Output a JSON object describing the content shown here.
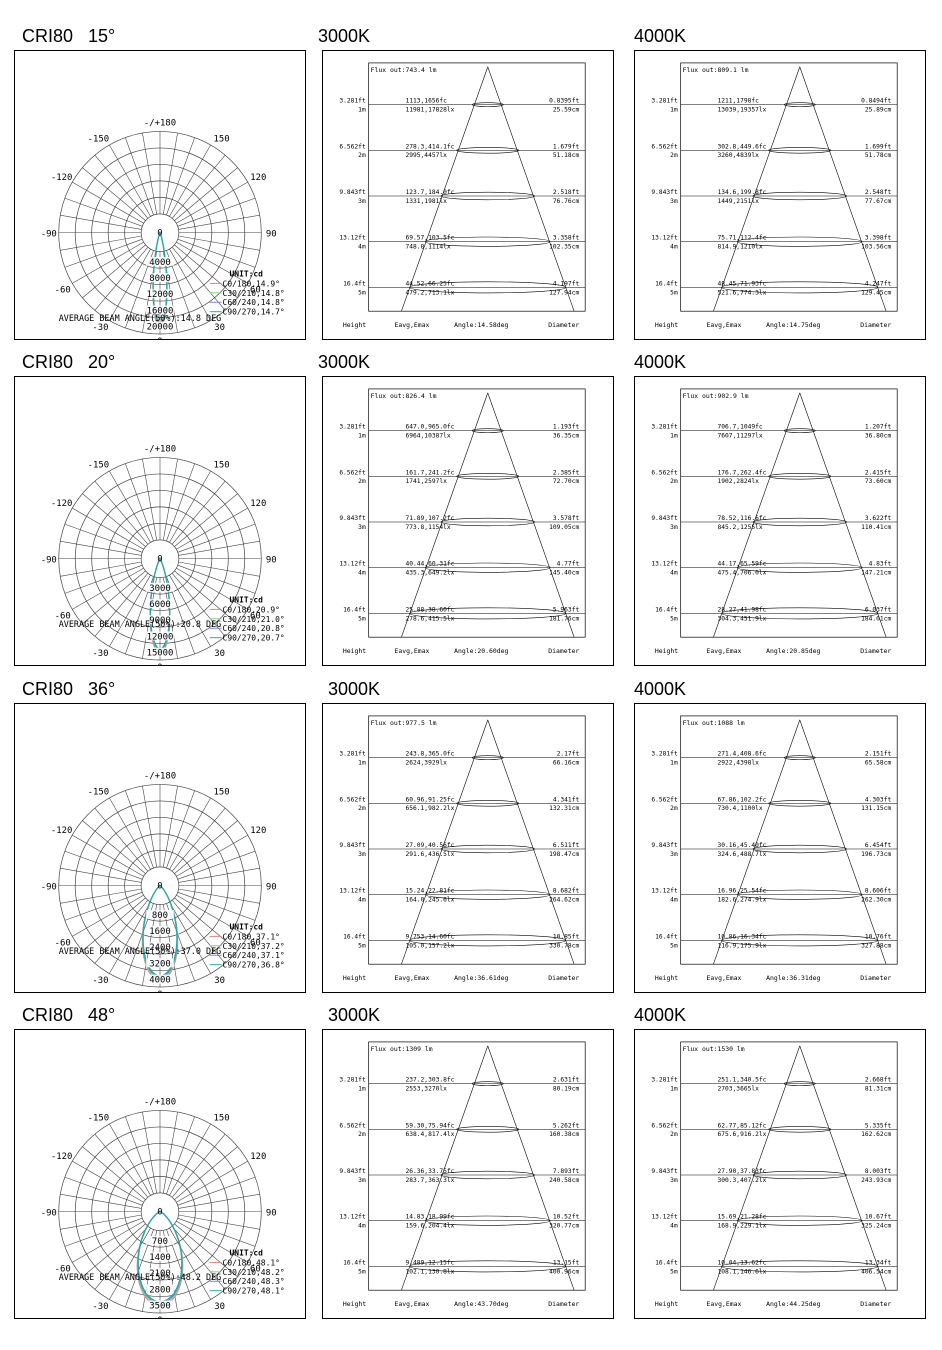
{
  "rows": [
    {
      "header": "CRI80   15°",
      "polar": {
        "ring_labels": [
          "0",
          "4000",
          "8000",
          "12000",
          "16000",
          "20000"
        ],
        "angle_labels": {
          "top": "-/+180",
          "l150": "-150",
          "r150": "150",
          "l120": "-120",
          "r120": "120",
          "l90": "-90",
          "r90": "90",
          "l60": "-60",
          "r60": "60",
          "l30": "-30",
          "r30": "30",
          "bottom": "0"
        },
        "unit": "UNIT:cd",
        "legend": [
          "C0/180,14.9°",
          "C30/210,14.8°",
          "C60/240,14.8°",
          "C90/270,14.7°"
        ],
        "beam": "AVERAGE BEAM ANGLE(50%):14.8 DEG",
        "beam_deg": 14.8
      },
      "cones": [
        {
          "cct": "3000K",
          "flux": "Flux out:743.4 lm",
          "angle_deg": 14.58,
          "footer": {
            "height": "Height",
            "e": "Eavg,Emax",
            "angle": "Angle:14.58deg",
            "diameter": "Diameter"
          },
          "rows": [
            {
              "ft": "3.281ft",
              "m": "1m",
              "fc": "1113,1656fc",
              "lx": "11981,17828lx",
              "dft": "0.8395ft",
              "dcm": "25.59cm"
            },
            {
              "ft": "6.562ft",
              "m": "2m",
              "fc": "278.3,414.1fc",
              "lx": "2995,4457lx",
              "dft": "1.679ft",
              "dcm": "51.18cm"
            },
            {
              "ft": "9.843ft",
              "m": "3m",
              "fc": "123.7,184.0fc",
              "lx": "1331,1981lx",
              "dft": "2.518ft",
              "dcm": "76.76cm"
            },
            {
              "ft": "13.12ft",
              "m": "4m",
              "fc": "69.57,103.5fc",
              "lx": "748.8,1114lx",
              "dft": "3.358ft",
              "dcm": "102.35cm"
            },
            {
              "ft": "16.4ft",
              "m": "5m",
              "fc": "44.52,66.25fc",
              "lx": "479.2,713.1lx",
              "dft": "4.197ft",
              "dcm": "127.94cm"
            }
          ]
        },
        {
          "cct": "4000K",
          "flux": "Flux out:809.1 lm",
          "angle_deg": 14.75,
          "footer": {
            "height": "Height",
            "e": "Eavg,Emax",
            "angle": "Angle:14.75deg",
            "diameter": "Diameter"
          },
          "rows": [
            {
              "ft": "3.281ft",
              "m": "1m",
              "fc": "1211,1798fc",
              "lx": "13039,19357lx",
              "dft": "0.8494ft",
              "dcm": "25.89cm"
            },
            {
              "ft": "6.562ft",
              "m": "2m",
              "fc": "302.8,449.6fc",
              "lx": "3260,4839lx",
              "dft": "1.699ft",
              "dcm": "51.78cm"
            },
            {
              "ft": "9.843ft",
              "m": "3m",
              "fc": "134.6,199.8fc",
              "lx": "1449,2151lx",
              "dft": "2.548ft",
              "dcm": "77.67cm"
            },
            {
              "ft": "13.12ft",
              "m": "4m",
              "fc": "75.71,112.4fc",
              "lx": "814.9,1210lx",
              "dft": "3.398ft",
              "dcm": "103.56cm"
            },
            {
              "ft": "16.4ft",
              "m": "5m",
              "fc": "48.45,71.93fc",
              "lx": "521.6,774.3lx",
              "dft": "4.247ft",
              "dcm": "129.45cm"
            }
          ]
        }
      ]
    },
    {
      "header": "CRI80   20°",
      "polar": {
        "ring_labels": [
          "0",
          "3000",
          "6000",
          "9000",
          "12000",
          "15000"
        ],
        "angle_labels": {
          "top": "-/+180",
          "l150": "-150",
          "r150": "150",
          "l120": "-120",
          "r120": "120",
          "l90": "-90",
          "r90": "90",
          "l60": "-60",
          "r60": "60",
          "l30": "-30",
          "r30": "30",
          "bottom": "0"
        },
        "unit": "UNIT:cd",
        "legend": [
          "C0/180,20.9°",
          "C30/210,21.0°",
          "C60/240,20.8°",
          "C90/270,20.7°"
        ],
        "beam": "AVERAGE BEAM ANGLE(50%):20.8 DEG",
        "beam_deg": 20.8
      },
      "cones": [
        {
          "cct": "3000K",
          "flux": "Flux out:826.4 lm",
          "angle_deg": 20.6,
          "footer": {
            "height": "Height",
            "e": "Eavg,Emax",
            "angle": "Angle:20.60deg",
            "diameter": "Diameter"
          },
          "rows": [
            {
              "ft": "3.281ft",
              "m": "1m",
              "fc": "647.0,965.0fc",
              "lx": "6964,10387lx",
              "dft": "1.193ft",
              "dcm": "36.35cm"
            },
            {
              "ft": "6.562ft",
              "m": "2m",
              "fc": "161.7,241.2fc",
              "lx": "1741,2597lx",
              "dft": "2.385ft",
              "dcm": "72.70cm"
            },
            {
              "ft": "9.843ft",
              "m": "3m",
              "fc": "71.89,107.2fc",
              "lx": "773.8,1154lx",
              "dft": "3.578ft",
              "dcm": "109.05cm"
            },
            {
              "ft": "13.12ft",
              "m": "4m",
              "fc": "40.44,60.31fc",
              "lx": "435.3,649.2lx",
              "dft": "4.77ft",
              "dcm": "145.40cm"
            },
            {
              "ft": "16.4ft",
              "m": "5m",
              "fc": "25.88,38.60fc",
              "lx": "278.6,415.5lx",
              "dft": "5.963ft",
              "dcm": "181.76cm"
            }
          ]
        },
        {
          "cct": "4000K",
          "flux": "Flux out:902.9 lm",
          "angle_deg": 20.85,
          "footer": {
            "height": "Height",
            "e": "Eavg,Emax",
            "angle": "Angle:20.85deg",
            "diameter": "Diameter"
          },
          "rows": [
            {
              "ft": "3.281ft",
              "m": "1m",
              "fc": "706.7,1049fc",
              "lx": "7607,11297lx",
              "dft": "1.207ft",
              "dcm": "36.80cm"
            },
            {
              "ft": "6.562ft",
              "m": "2m",
              "fc": "176.7,262.4fc",
              "lx": "1902,2824lx",
              "dft": "2.415ft",
              "dcm": "73.60cm"
            },
            {
              "ft": "9.843ft",
              "m": "3m",
              "fc": "78.52,116.6fc",
              "lx": "845.2,1255lx",
              "dft": "3.622ft",
              "dcm": "110.41cm"
            },
            {
              "ft": "13.12ft",
              "m": "4m",
              "fc": "44.17,65.59fc",
              "lx": "475.4,706.0lx",
              "dft": "4.83ft",
              "dcm": "147.21cm"
            },
            {
              "ft": "16.4ft",
              "m": "5m",
              "fc": "28.27,41.98fc",
              "lx": "304.3,451.9lx",
              "dft": "6.037ft",
              "dcm": "184.01cm"
            }
          ]
        }
      ]
    },
    {
      "header": "CRI80   36°",
      "polar": {
        "ring_labels": [
          "0",
          "800",
          "1600",
          "2400",
          "3200",
          "4000"
        ],
        "angle_labels": {
          "top": "-/+180",
          "l150": "-150",
          "r150": "150",
          "l120": "-120",
          "r120": "120",
          "l90": "-90",
          "r90": "90",
          "l60": "-60",
          "r60": "60",
          "l30": "-30",
          "r30": "30",
          "bottom": "0"
        },
        "unit": "UNIT:cd",
        "legend": [
          "C0/180,37.1°",
          "C30/210,37.2°",
          "C60/240,37.1°",
          "C90/270,36.8°"
        ],
        "beam": "AVERAGE BEAM ANGLE(50%):37.0 DEG",
        "beam_deg": 37.0
      },
      "cones": [
        {
          "cct": "3000K",
          "flux": "Flux out:977.5 lm",
          "angle_deg": 36.61,
          "footer": {
            "height": "Height",
            "e": "Eavg,Emax",
            "angle": "Angle:36.61deg",
            "diameter": "Diameter"
          },
          "rows": [
            {
              "ft": "3.281ft",
              "m": "1m",
              "fc": "243.8,365.0fc",
              "lx": "2624,3929lx",
              "dft": "2.17ft",
              "dcm": "66.16cm"
            },
            {
              "ft": "6.562ft",
              "m": "2m",
              "fc": "60.96,91.25fc",
              "lx": "656.1,982.2lx",
              "dft": "4.341ft",
              "dcm": "132.31cm"
            },
            {
              "ft": "9.843ft",
              "m": "3m",
              "fc": "27.09,40.56fc",
              "lx": "291.6,436.5lx",
              "dft": "6.511ft",
              "dcm": "198.47cm"
            },
            {
              "ft": "13.12ft",
              "m": "4m",
              "fc": "15.24,22.81fc",
              "lx": "164.0,245.6lx",
              "dft": "8.682ft",
              "dcm": "264.62cm"
            },
            {
              "ft": "16.4ft",
              "m": "5m",
              "fc": "9.753,14.60fc",
              "lx": "105.0,157.2lx",
              "dft": "10.85ft",
              "dcm": "330.78cm"
            }
          ]
        },
        {
          "cct": "4000K",
          "flux": "Flux out:1088 lm",
          "angle_deg": 36.31,
          "footer": {
            "height": "Height",
            "e": "Eavg,Emax",
            "angle": "Angle:36.31deg",
            "diameter": "Diameter"
          },
          "rows": [
            {
              "ft": "3.281ft",
              "m": "1m",
              "fc": "271.4,408.6fc",
              "lx": "2922,4398lx",
              "dft": "2.151ft",
              "dcm": "65.58cm"
            },
            {
              "ft": "6.562ft",
              "m": "2m",
              "fc": "67.86,102.2fc",
              "lx": "730.4,1100lx",
              "dft": "4.303ft",
              "dcm": "131.15cm"
            },
            {
              "ft": "9.843ft",
              "m": "3m",
              "fc": "30.16,45.40fc",
              "lx": "324.6,488.7lx",
              "dft": "6.454ft",
              "dcm": "196.73cm"
            },
            {
              "ft": "13.12ft",
              "m": "4m",
              "fc": "16.96,25.54fc",
              "lx": "182.6,274.9lx",
              "dft": "8.606ft",
              "dcm": "262.30cm"
            },
            {
              "ft": "16.4ft",
              "m": "5m",
              "fc": "10.86,16.34fc",
              "lx": "116.9,175.9lx",
              "dft": "10.76ft",
              "dcm": "327.88cm"
            }
          ]
        }
      ]
    },
    {
      "header": "CRI80   48°",
      "polar": {
        "ring_labels": [
          "0",
          "700",
          "1400",
          "2100",
          "2800",
          "3500"
        ],
        "angle_labels": {
          "top": "-/+180",
          "l150": "-150",
          "r150": "150",
          "l120": "-120",
          "r120": "120",
          "l90": "-90",
          "r90": "90",
          "l60": "-60",
          "r60": "60",
          "l30": "-30",
          "r30": "30",
          "bottom": "0"
        },
        "unit": "UNIT:cd",
        "legend": [
          "C0/180,48.1°",
          "C30/210,48.2°",
          "C60/240,48.3°",
          "C90/270,48.1°"
        ],
        "beam": "AVERAGE BEAM ANGLE(50%):48.2 DEG",
        "beam_deg": 48.2
      },
      "cones": [
        {
          "cct": "3000K",
          "flux": "Flux out:1309 lm",
          "angle_deg": 43.7,
          "footer": {
            "height": "Height",
            "e": "Eavg,Emax",
            "angle": "Angle:43.70deg",
            "diameter": "Diameter"
          },
          "rows": [
            {
              "ft": "3.281ft",
              "m": "1m",
              "fc": "237.2,303.8fc",
              "lx": "2553,3270lx",
              "dft": "2.631ft",
              "dcm": "80.19cm"
            },
            {
              "ft": "6.562ft",
              "m": "2m",
              "fc": "59.30,75.94fc",
              "lx": "638.4,817.4lx",
              "dft": "5.262ft",
              "dcm": "160.38cm"
            },
            {
              "ft": "9.843ft",
              "m": "3m",
              "fc": "26.36,33.75fc",
              "lx": "283.7,363.3lx",
              "dft": "7.893ft",
              "dcm": "240.58cm"
            },
            {
              "ft": "13.12ft",
              "m": "4m",
              "fc": "14.83,18.99fc",
              "lx": "159.6,204.4lx",
              "dft": "10.52ft",
              "dcm": "320.77cm"
            },
            {
              "ft": "16.4ft",
              "m": "5m",
              "fc": "9.489,12.15fc",
              "lx": "102.1,130.8lx",
              "dft": "13.15ft",
              "dcm": "400.96cm"
            }
          ]
        },
        {
          "cct": "4000K",
          "flux": "Flux out:1530 lm",
          "angle_deg": 44.25,
          "footer": {
            "height": "Height",
            "e": "Eavg,Emax",
            "angle": "Angle:44.25deg",
            "diameter": "Diameter"
          },
          "rows": [
            {
              "ft": "3.281ft",
              "m": "1m",
              "fc": "251.1,340.5fc",
              "lx": "2703,3665lx",
              "dft": "2.668ft",
              "dcm": "81.31cm"
            },
            {
              "ft": "6.562ft",
              "m": "2m",
              "fc": "62.77,85.12fc",
              "lx": "675.6,916.2lx",
              "dft": "5.335ft",
              "dcm": "162.62cm"
            },
            {
              "ft": "9.843ft",
              "m": "3m",
              "fc": "27.90,37.83fc",
              "lx": "300.3,407.2lx",
              "dft": "8.003ft",
              "dcm": "243.93cm"
            },
            {
              "ft": "13.12ft",
              "m": "4m",
              "fc": "15.69,21.28fc",
              "lx": "168.9,229.1lx",
              "dft": "10.67ft",
              "dcm": "325.24cm"
            },
            {
              "ft": "16.4ft",
              "m": "5m",
              "fc": "10.04,13.62fc",
              "lx": "108.1,146.6lx",
              "dft": "13.34ft",
              "dcm": "406.54cm"
            }
          ]
        }
      ]
    }
  ],
  "colors": {
    "c0": "#e08080",
    "c30": "#80d080",
    "c60": "#8080e0",
    "c90": "#2aa8a8",
    "line": "#000000",
    "grid": "#444444"
  },
  "chart_data": [
    {
      "type": "polar",
      "title": "CRI80   15°",
      "unit": "UNIT:cd",
      "r_ticks": [
        0,
        4000,
        8000,
        12000,
        16000,
        20000
      ],
      "series": [
        {
          "name": "C0/180,14.9°",
          "beam_angle": 14.9
        },
        {
          "name": "C30/210,14.8°",
          "beam_angle": 14.8
        },
        {
          "name": "C60/240,14.8°",
          "beam_angle": 14.8
        },
        {
          "name": "C90/270,14.7°",
          "beam_angle": 14.7
        }
      ],
      "average_beam_angle": 14.8
    },
    {
      "type": "polar",
      "title": "CRI80   20°",
      "unit": "UNIT:cd",
      "r_ticks": [
        0,
        3000,
        6000,
        9000,
        12000,
        15000
      ],
      "series": [
        {
          "name": "C0/180,20.9°",
          "beam_angle": 20.9
        },
        {
          "name": "C30/210,21.0°",
          "beam_angle": 21.0
        },
        {
          "name": "C60/240,20.8°",
          "beam_angle": 20.8
        },
        {
          "name": "C90/270,20.7°",
          "beam_angle": 20.7
        }
      ],
      "average_beam_angle": 20.8
    },
    {
      "type": "polar",
      "title": "CRI80   36°",
      "unit": "UNIT:cd",
      "r_ticks": [
        0,
        800,
        1600,
        2400,
        3200,
        4000
      ],
      "series": [
        {
          "name": "C0/180,37.1°",
          "beam_angle": 37.1
        },
        {
          "name": "C30/210,37.2°",
          "beam_angle": 37.2
        },
        {
          "name": "C60/240,37.1°",
          "beam_angle": 37.1
        },
        {
          "name": "C90/270,36.8°",
          "beam_angle": 36.8
        }
      ],
      "average_beam_angle": 37.0
    },
    {
      "type": "polar",
      "title": "CRI80   48°",
      "unit": "UNIT:cd",
      "r_ticks": [
        0,
        700,
        1400,
        2100,
        2800,
        3500
      ],
      "series": [
        {
          "name": "C0/180,48.1°",
          "beam_angle": 48.1
        },
        {
          "name": "C30/210,48.2°",
          "beam_angle": 48.2
        },
        {
          "name": "C60/240,48.3°",
          "beam_angle": 48.3
        },
        {
          "name": "C90/270,48.1°",
          "beam_angle": 48.1
        }
      ],
      "average_beam_angle": 48.2
    }
  ]
}
